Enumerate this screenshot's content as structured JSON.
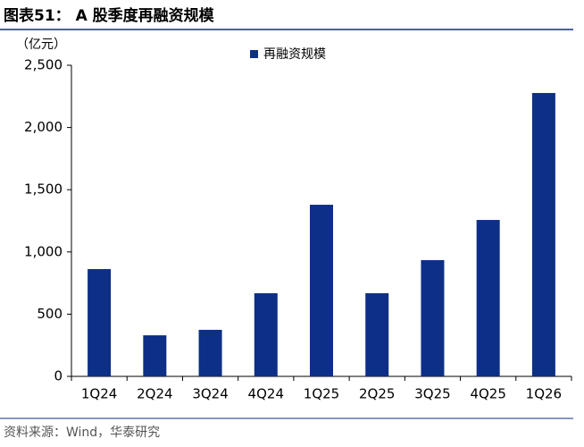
{
  "chart_data": {
    "type": "bar",
    "title": "图表51： A 股季度再融资规模",
    "y_unit": "（亿元）",
    "source": "资料来源：Wind，华泰研究",
    "categories": [
      "1Q24",
      "2Q24",
      "3Q24",
      "4Q24",
      "1Q25",
      "2Q25",
      "3Q25",
      "4Q25",
      "1Q26"
    ],
    "series": [
      {
        "name": "再融资规模",
        "color": "#0d2f86",
        "values": [
          862,
          330,
          374,
          668,
          1379,
          668,
          934,
          1257,
          2277
        ]
      }
    ],
    "ylim": [
      0,
      2500
    ],
    "yticks": [
      0,
      500,
      {
        "value": 1000,
        "label": "1,000"
      },
      {
        "value": 1500,
        "label": "1,500"
      },
      {
        "value": 2000,
        "label": "2,000"
      },
      {
        "value": 2500,
        "label": "2,500"
      }
    ],
    "legend": "top"
  }
}
